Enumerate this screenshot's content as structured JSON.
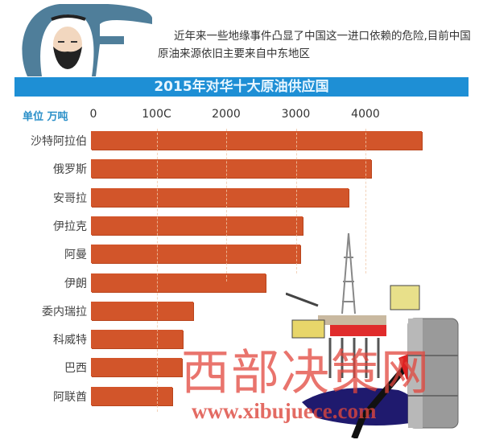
{
  "header": {
    "intro_text": "近年来一些地缘事件凸显了中国这一进口依赖的危险,目前中国原油来源依旧主要来自中东地区"
  },
  "chart_data": {
    "type": "bar",
    "orientation": "horizontal",
    "title": "2015年对华十大原油供应国",
    "unit_label": "单位 万吨",
    "x_ticks": [
      "0",
      "100C",
      "2000",
      "3000",
      "4000"
    ],
    "x_tick_values": [
      0,
      1000,
      2000,
      3000,
      4000
    ],
    "xlim": [
      0,
      5000
    ],
    "grid": true,
    "categories": [
      "沙特阿拉伯",
      "俄罗斯",
      "安哥拉",
      "伊拉克",
      "阿曼",
      "伊朗",
      "委内瑞拉",
      "科威特",
      "巴西",
      "阿联酋"
    ],
    "values": [
      4810,
      4080,
      3760,
      3100,
      3060,
      2570,
      1530,
      1380,
      1360,
      1230
    ],
    "bar_color": "#d2552a",
    "title_bar_color": "#1e8fd5"
  },
  "watermark": {
    "name": "西部决策网",
    "url": "www.xibujuece.com"
  },
  "illustrations": [
    "sheikh-avatar-icon",
    "oil-rig-icon",
    "oil-barrel-icon",
    "fuel-nozzle-icon"
  ]
}
